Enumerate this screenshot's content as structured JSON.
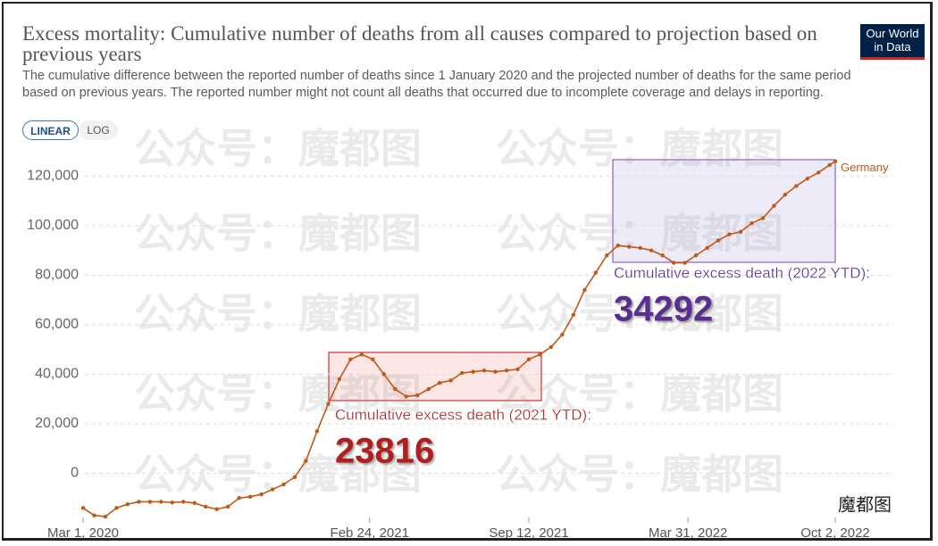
{
  "chart_data": {
    "type": "line",
    "title": "Excess mortality: Cumulative number of deaths from all causes compared to projection based on previous years",
    "subtitle": "The cumulative difference between the reported number of deaths since 1 January 2020 and the projected number of deaths for the same period based on previous years. The reported number might not count all deaths that occurred due to incomplete coverage and delays in reporting.",
    "logo": [
      "Our World",
      "in Data"
    ],
    "scale_buttons": [
      "LINEAR",
      "LOG"
    ],
    "x": [
      "2020-03-01",
      "2020-03-15",
      "2020-03-29",
      "2020-04-12",
      "2020-04-26",
      "2020-05-10",
      "2020-05-24",
      "2020-06-07",
      "2020-06-21",
      "2020-07-05",
      "2020-07-19",
      "2020-08-02",
      "2020-08-16",
      "2020-08-30",
      "2020-09-13",
      "2020-09-27",
      "2020-10-11",
      "2020-10-25",
      "2020-11-08",
      "2020-11-22",
      "2020-12-06",
      "2020-12-20",
      "2021-01-03",
      "2021-01-17",
      "2021-01-31",
      "2021-02-14",
      "2021-02-28",
      "2021-03-14",
      "2021-03-28",
      "2021-04-11",
      "2021-04-25",
      "2021-05-09",
      "2021-05-23",
      "2021-06-06",
      "2021-06-20",
      "2021-07-04",
      "2021-07-18",
      "2021-08-01",
      "2021-08-15",
      "2021-08-29",
      "2021-09-12",
      "2021-09-26",
      "2021-10-10",
      "2021-10-24",
      "2021-11-07",
      "2021-11-21",
      "2021-12-05",
      "2021-12-19",
      "2022-01-02",
      "2022-01-16",
      "2022-01-30",
      "2022-02-13",
      "2022-02-27",
      "2022-03-13",
      "2022-03-27",
      "2022-04-10",
      "2022-04-24",
      "2022-05-08",
      "2022-05-22",
      "2022-06-05",
      "2022-06-19",
      "2022-07-03",
      "2022-07-17",
      "2022-07-31",
      "2022-08-14",
      "2022-08-28",
      "2022-09-11",
      "2022-09-25",
      "2022-10-02"
    ],
    "series": [
      {
        "name": "Germany",
        "color": "#c05917",
        "values": [
          -14000,
          -17000,
          -17500,
          -14000,
          -12500,
          -11500,
          -11500,
          -11500,
          -11800,
          -11500,
          -12000,
          -13500,
          -14500,
          -13500,
          -10000,
          -9500,
          -8500,
          -6500,
          -4500,
          -1500,
          5000,
          17000,
          28000,
          38000,
          46000,
          48000,
          46000,
          40000,
          34000,
          31000,
          31500,
          34000,
          36500,
          37500,
          40500,
          41000,
          41500,
          41000,
          41500,
          42000,
          46000,
          48000,
          51000,
          56000,
          64000,
          74000,
          81000,
          88000,
          92000,
          91500,
          91000,
          90000,
          88000,
          85000,
          85000,
          88000,
          91000,
          94000,
          96500,
          97500,
          101000,
          103000,
          108000,
          112500,
          116000,
          119000,
          121500,
          124500,
          126000
        ]
      }
    ],
    "xlim": [
      "2020-03-01",
      "2022-10-02"
    ],
    "xticks": [
      {
        "value": "2020-03-01",
        "label": "Mar 1, 2020"
      },
      {
        "value": "2021-02-24",
        "label": "Feb 24, 2021"
      },
      {
        "value": "2021-09-12",
        "label": "Sep 12, 2021"
      },
      {
        "value": "2022-03-31",
        "label": "Mar 31, 2022"
      },
      {
        "value": "2022-10-02",
        "label": "Oct 2, 2022"
      }
    ],
    "ylim": [
      -20000,
      127000
    ],
    "yticks": [
      0,
      {
        "value": 20000,
        "label": "20,000"
      },
      {
        "value": 40000,
        "label": "40,000"
      },
      {
        "value": 60000,
        "label": "60,000"
      },
      {
        "value": 80000,
        "label": "80,000"
      },
      {
        "value": 100000,
        "label": "100,000"
      },
      {
        "value": 120000,
        "label": "120,000"
      }
    ],
    "grid": true,
    "annotations": [
      {
        "text": "Cumulative excess death (2021 YTD):",
        "value": 23816,
        "color": "#b01e1e"
      },
      {
        "text": "Cumulative excess death (2022 YTD):",
        "value": 34292,
        "color": "#5a2d91"
      }
    ],
    "watermark": "公众号：魔都图",
    "brand": "魔都图"
  }
}
